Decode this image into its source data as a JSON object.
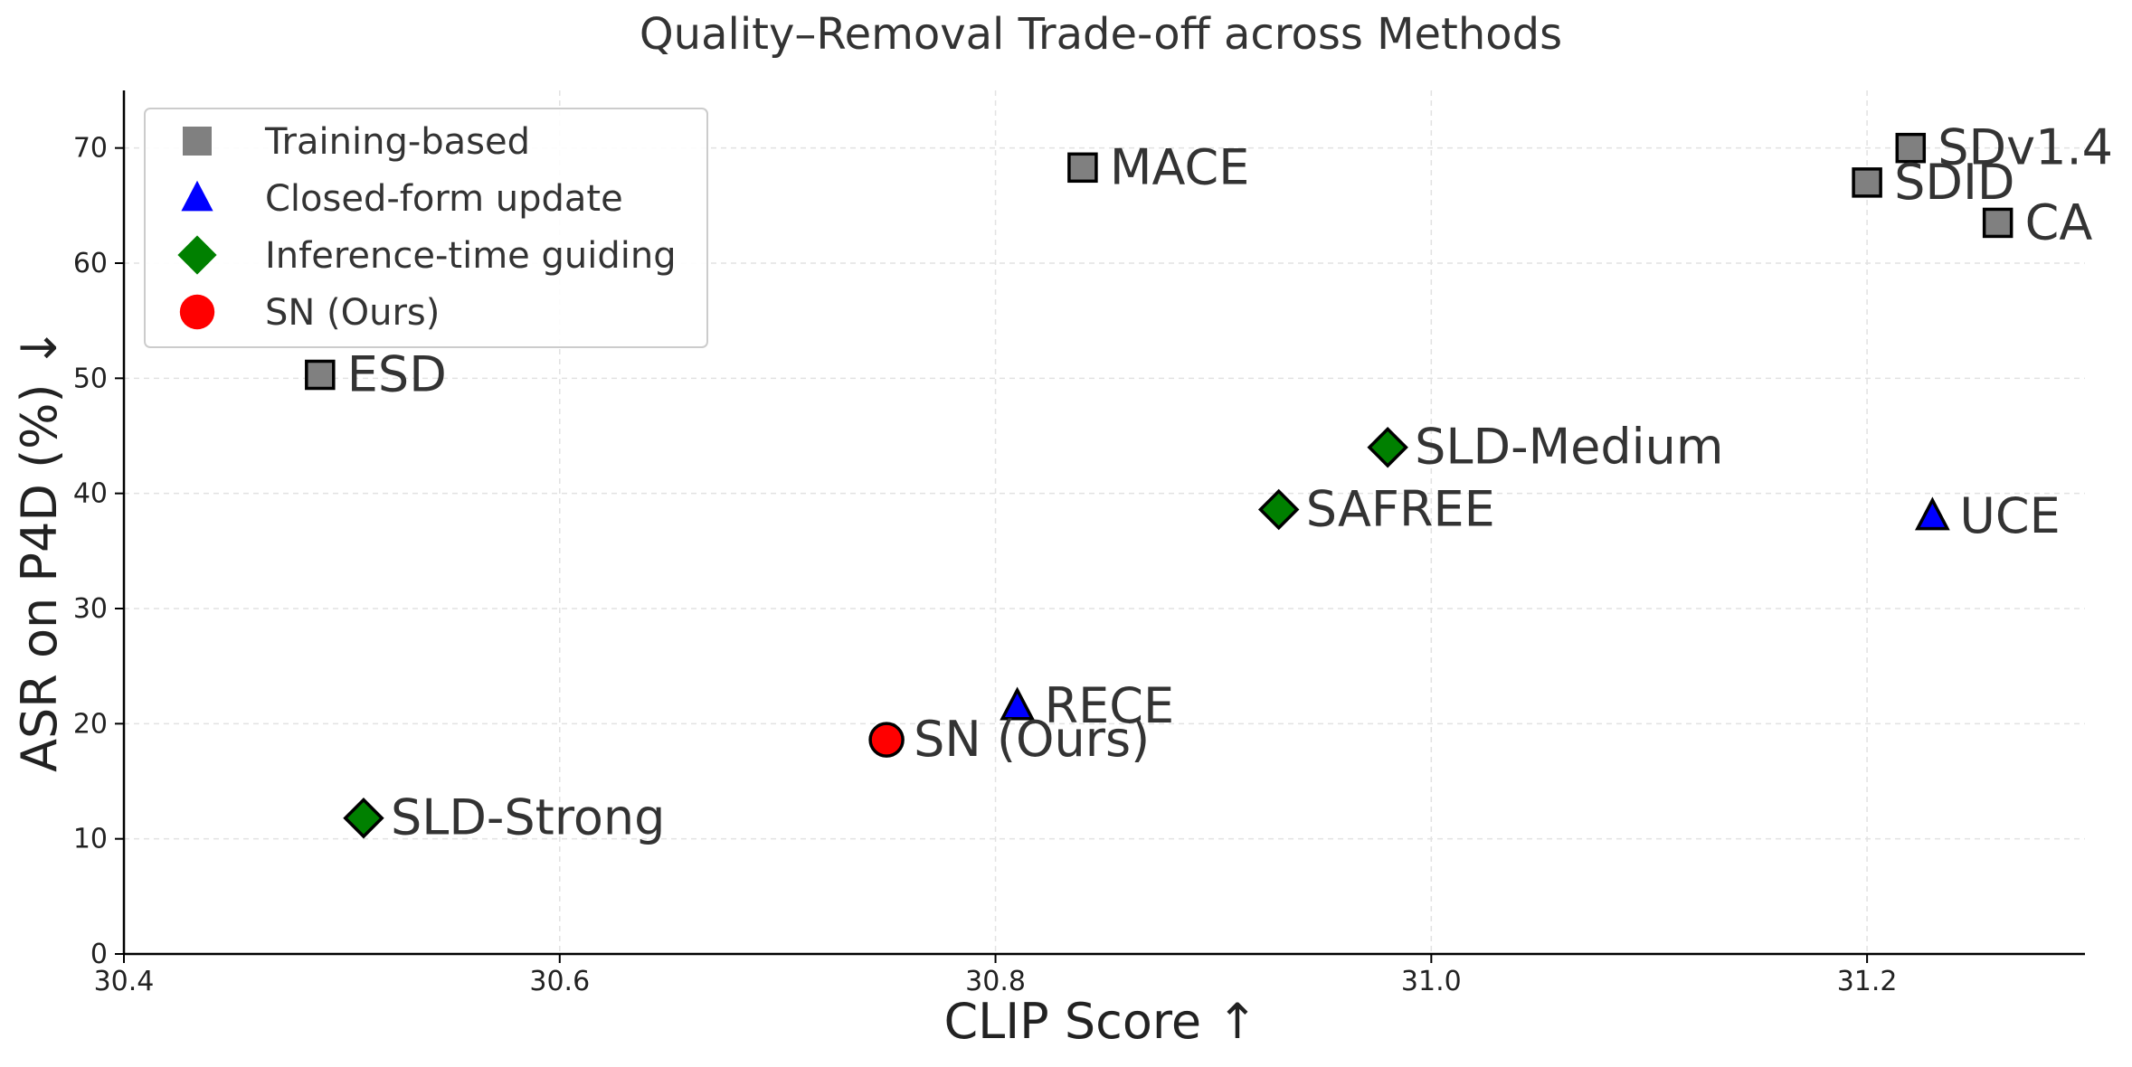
{
  "chart_data": {
    "type": "scatter",
    "title": "Quality–Removal Trade-off across Methods",
    "xlabel": "CLIP Score ↑",
    "ylabel": "ASR on P4D (%) ↓",
    "xlim": [
      30.4,
      31.3
    ],
    "ylim": [
      0,
      75
    ],
    "xticks": [
      30.4,
      30.6,
      30.8,
      31.0,
      31.2
    ],
    "xtick_labels": [
      "30.4",
      "30.6",
      "30.8",
      "31.0",
      "31.2"
    ],
    "yticks": [
      0,
      10,
      20,
      30,
      40,
      50,
      60,
      70
    ],
    "ytick_labels": [
      "0",
      "10",
      "20",
      "30",
      "40",
      "50",
      "60",
      "70"
    ],
    "grid": true,
    "legend_position": "top-left",
    "legend": [
      {
        "label": "Training-based",
        "marker": "square",
        "color": "#808080"
      },
      {
        "label": "Closed-form update",
        "marker": "triangle",
        "color": "#0000ff"
      },
      {
        "label": "Inference-time guiding",
        "marker": "diamond",
        "color": "#008000"
      },
      {
        "label": "SN (Ours)",
        "marker": "circle",
        "color": "#ff0000"
      }
    ],
    "points": [
      {
        "label": "SDv1.4",
        "x": 31.22,
        "y": 70.0,
        "group": "Training-based"
      },
      {
        "label": "SDID",
        "x": 31.2,
        "y": 67.0,
        "group": "Training-based"
      },
      {
        "label": "CA",
        "x": 31.26,
        "y": 63.5,
        "group": "Training-based"
      },
      {
        "label": "MACE",
        "x": 30.84,
        "y": 68.3,
        "group": "Training-based"
      },
      {
        "label": "ESD",
        "x": 30.49,
        "y": 50.3,
        "group": "Training-based"
      },
      {
        "label": "UCE",
        "x": 31.23,
        "y": 38.0,
        "group": "Closed-form update"
      },
      {
        "label": "RECE",
        "x": 30.81,
        "y": 21.5,
        "group": "Closed-form update"
      },
      {
        "label": "SLD-Medium",
        "x": 30.98,
        "y": 44.0,
        "group": "Inference-time guiding"
      },
      {
        "label": "SAFREE",
        "x": 30.93,
        "y": 38.6,
        "group": "Inference-time guiding"
      },
      {
        "label": "SLD-Strong",
        "x": 30.51,
        "y": 11.8,
        "group": "Inference-time guiding"
      },
      {
        "label": "SN (Ours)",
        "x": 30.75,
        "y": 18.6,
        "group": "SN (Ours)"
      }
    ]
  }
}
